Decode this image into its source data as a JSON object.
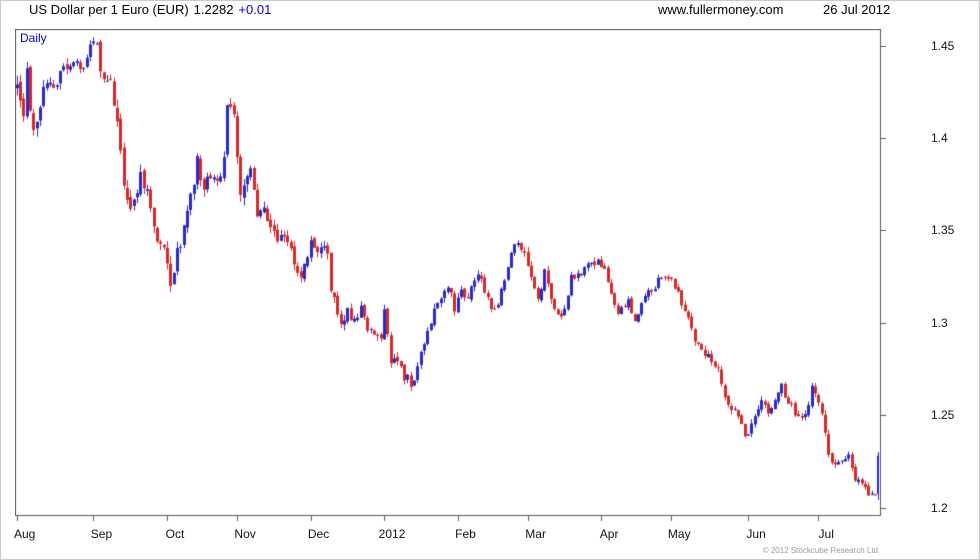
{
  "header": {
    "title": "US Dollar per 1 Euro (EUR)",
    "price": "1.2282",
    "change": "+0.01",
    "site": "www.fullermoney.com",
    "date": "26 Jul 2012"
  },
  "chart": {
    "interval_label": "Daily",
    "copyright": "© 2012 Stockcube Research Ltd"
  },
  "chart_data": {
    "type": "candlestick",
    "title": "US Dollar per 1 Euro (EUR), Daily",
    "xlabel": "",
    "ylabel": "",
    "ylim": [
      1.196,
      1.459
    ],
    "y_axis_side": "right",
    "grid": false,
    "legend": "none",
    "up_color": "#2a2ac8",
    "down_color": "#d22a2a",
    "last_price": 1.2282,
    "last_change": 0.01,
    "total_days": 259,
    "y_ticks": [
      {
        "label": "1.45",
        "value": 1.45
      },
      {
        "label": "1.4",
        "value": 1.4
      },
      {
        "label": "1.35",
        "value": 1.35
      },
      {
        "label": "1.3",
        "value": 1.3
      },
      {
        "label": "1.25",
        "value": 1.25
      },
      {
        "label": "1.2",
        "value": 1.2
      }
    ],
    "x_labels": [
      {
        "label": "Aug",
        "day": 0
      },
      {
        "label": "Sep",
        "day": 23
      },
      {
        "label": "Oct",
        "day": 45
      },
      {
        "label": "Nov",
        "day": 66
      },
      {
        "label": "Dec",
        "day": 88
      },
      {
        "label": "2012",
        "day": 110
      },
      {
        "label": "Feb",
        "day": 132
      },
      {
        "label": "Mar",
        "day": 153
      },
      {
        "label": "Apr",
        "day": 175
      },
      {
        "label": "May",
        "day": 196
      },
      {
        "label": "Jun",
        "day": 219
      },
      {
        "label": "Jul",
        "day": 240
      }
    ],
    "anchors": [
      [
        0,
        1.426
      ],
      [
        2,
        1.417
      ],
      [
        3,
        1.432
      ],
      [
        5,
        1.408
      ],
      [
        7,
        1.419
      ],
      [
        9,
        1.429
      ],
      [
        11,
        1.424
      ],
      [
        14,
        1.441
      ],
      [
        16,
        1.436
      ],
      [
        18,
        1.442
      ],
      [
        20,
        1.438
      ],
      [
        22,
        1.448
      ],
      [
        24,
        1.452
      ],
      [
        26,
        1.428
      ],
      [
        28,
        1.433
      ],
      [
        30,
        1.41
      ],
      [
        32,
        1.376
      ],
      [
        34,
        1.365
      ],
      [
        37,
        1.379
      ],
      [
        39,
        1.37
      ],
      [
        41,
        1.35
      ],
      [
        44,
        1.339
      ],
      [
        46,
        1.318
      ],
      [
        48,
        1.338
      ],
      [
        51,
        1.358
      ],
      [
        54,
        1.388
      ],
      [
        56,
        1.374
      ],
      [
        58,
        1.381
      ],
      [
        60,
        1.376
      ],
      [
        62,
        1.39
      ],
      [
        63,
        1.419
      ],
      [
        65,
        1.41
      ],
      [
        67,
        1.37
      ],
      [
        69,
        1.378
      ],
      [
        70,
        1.383
      ],
      [
        72,
        1.355
      ],
      [
        74,
        1.363
      ],
      [
        76,
        1.352
      ],
      [
        78,
        1.346
      ],
      [
        80,
        1.35
      ],
      [
        82,
        1.34
      ],
      [
        84,
        1.324
      ],
      [
        86,
        1.331
      ],
      [
        88,
        1.344
      ],
      [
        90,
        1.339
      ],
      [
        93,
        1.338
      ],
      [
        94,
        1.318
      ],
      [
        97,
        1.298
      ],
      [
        99,
        1.305
      ],
      [
        101,
        1.304
      ],
      [
        103,
        1.307
      ],
      [
        105,
        1.296
      ],
      [
        107,
        1.294
      ],
      [
        109,
        1.294
      ],
      [
        110,
        1.305
      ],
      [
        112,
        1.279
      ],
      [
        114,
        1.277
      ],
      [
        116,
        1.271
      ],
      [
        118,
        1.268
      ],
      [
        119,
        1.266
      ],
      [
        121,
        1.282
      ],
      [
        123,
        1.293
      ],
      [
        125,
        1.306
      ],
      [
        127,
        1.311
      ],
      [
        129,
        1.321
      ],
      [
        131,
        1.308
      ],
      [
        133,
        1.316
      ],
      [
        135,
        1.313
      ],
      [
        138,
        1.326
      ],
      [
        141,
        1.313
      ],
      [
        143,
        1.306
      ],
      [
        146,
        1.323
      ],
      [
        148,
        1.337
      ],
      [
        149,
        1.345
      ],
      [
        151,
        1.34
      ],
      [
        153,
        1.332
      ],
      [
        156,
        1.311
      ],
      [
        158,
        1.327
      ],
      [
        161,
        1.308
      ],
      [
        163,
        1.302
      ],
      [
        166,
        1.324
      ],
      [
        169,
        1.327
      ],
      [
        172,
        1.332
      ],
      [
        174,
        1.334
      ],
      [
        176,
        1.33
      ],
      [
        178,
        1.316
      ],
      [
        180,
        1.306
      ],
      [
        183,
        1.312
      ],
      [
        185,
        1.302
      ],
      [
        187,
        1.31
      ],
      [
        189,
        1.316
      ],
      [
        191,
        1.32
      ],
      [
        193,
        1.325
      ],
      [
        196,
        1.323
      ],
      [
        198,
        1.315
      ],
      [
        200,
        1.308
      ],
      [
        202,
        1.295
      ],
      [
        205,
        1.286
      ],
      [
        208,
        1.278
      ],
      [
        210,
        1.273
      ],
      [
        212,
        1.258
      ],
      [
        214,
        1.254
      ],
      [
        216,
        1.25
      ],
      [
        218,
        1.237
      ],
      [
        219,
        1.24
      ],
      [
        221,
        1.249
      ],
      [
        223,
        1.258
      ],
      [
        225,
        1.251
      ],
      [
        227,
        1.256
      ],
      [
        229,
        1.265
      ],
      [
        231,
        1.258
      ],
      [
        233,
        1.251
      ],
      [
        235,
        1.248
      ],
      [
        237,
        1.255
      ],
      [
        238,
        1.266
      ],
      [
        240,
        1.258
      ],
      [
        242,
        1.239
      ],
      [
        243,
        1.229
      ],
      [
        245,
        1.225
      ],
      [
        247,
        1.2249
      ],
      [
        249,
        1.228
      ],
      [
        251,
        1.216
      ],
      [
        253,
        1.211
      ],
      [
        255,
        1.2075
      ],
      [
        257,
        1.206
      ],
      [
        258,
        1.2282
      ]
    ],
    "volatility": [
      [
        0,
        0.016
      ],
      [
        4,
        0.02
      ],
      [
        8,
        0.012
      ],
      [
        14,
        0.01
      ],
      [
        22,
        0.009
      ],
      [
        26,
        0.013
      ],
      [
        32,
        0.014
      ],
      [
        40,
        0.011
      ],
      [
        46,
        0.013
      ],
      [
        54,
        0.012
      ],
      [
        63,
        0.012
      ],
      [
        67,
        0.013
      ],
      [
        75,
        0.01
      ],
      [
        85,
        0.009
      ],
      [
        95,
        0.01
      ],
      [
        105,
        0.008
      ],
      [
        115,
        0.008
      ],
      [
        125,
        0.008
      ],
      [
        135,
        0.007
      ],
      [
        145,
        0.007
      ],
      [
        155,
        0.008
      ],
      [
        165,
        0.007
      ],
      [
        175,
        0.007
      ],
      [
        185,
        0.006
      ],
      [
        195,
        0.006
      ],
      [
        205,
        0.007
      ],
      [
        215,
        0.007
      ],
      [
        225,
        0.006
      ],
      [
        235,
        0.006
      ],
      [
        243,
        0.008
      ],
      [
        250,
        0.006
      ],
      [
        257,
        0.007
      ],
      [
        258,
        0.026
      ]
    ],
    "last_candle": {
      "open": 1.2075,
      "high": 1.23,
      "low": 1.2042,
      "close": 1.2282
    }
  }
}
